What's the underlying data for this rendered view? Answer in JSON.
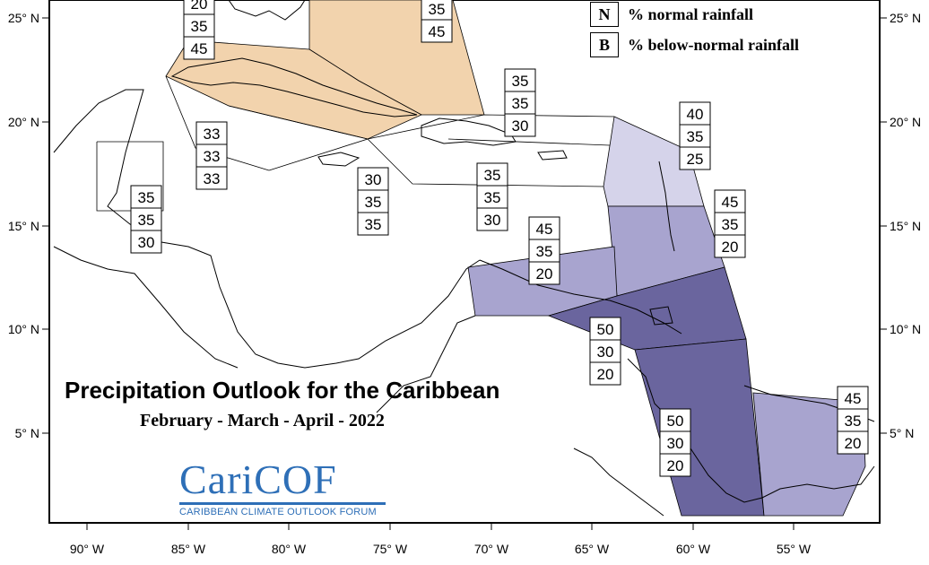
{
  "map": {
    "title": "Precipitation Outlook for the Caribbean",
    "subtitle": "February - March - April - 2022",
    "x_ticks": [
      "90° W",
      "85° W",
      "80° W",
      "75° W",
      "70° W",
      "65° W",
      "60° W",
      "55° W"
    ],
    "y_ticks": [
      "25° N",
      "20° N",
      "15° N",
      "10° N",
      "5° N"
    ],
    "colors": {
      "tan": "#f2d3ad",
      "light_lavender": "#d5d3ea",
      "medium_lavender": "#a8a4cf",
      "dark_purple": "#6a659e",
      "purple": "#7f7ab0",
      "land_line": "#000000"
    },
    "regions": [
      {
        "id": "bahamas",
        "values": [
          "35",
          "45"
        ],
        "color": "tan"
      },
      {
        "id": "cuba",
        "values": [
          "20",
          "35",
          "45"
        ],
        "color": "tan"
      },
      {
        "id": "hispaniola",
        "values": [
          "35",
          "35",
          "30"
        ],
        "color": "white"
      },
      {
        "id": "yucatan-basin",
        "values": [
          "33",
          "33",
          "33"
        ],
        "color": "white"
      },
      {
        "id": "belize",
        "values": [
          "35",
          "35",
          "30"
        ],
        "color": "white"
      },
      {
        "id": "jamaica",
        "values": [
          "30",
          "35",
          "35"
        ],
        "color": "white"
      },
      {
        "id": "central-caribbean",
        "values": [
          "35",
          "35",
          "30"
        ],
        "color": "white"
      },
      {
        "id": "leeward-islands",
        "values": [
          "40",
          "35",
          "25"
        ],
        "color": "light_lavender"
      },
      {
        "id": "windward-islands",
        "values": [
          "45",
          "35",
          "20"
        ],
        "color": "medium_lavender"
      },
      {
        "id": "abc-islands",
        "values": [
          "45",
          "35",
          "20"
        ],
        "color": "medium_lavender"
      },
      {
        "id": "trinidad",
        "values": [
          "50",
          "30",
          "20"
        ],
        "color": "dark_purple"
      },
      {
        "id": "guyana",
        "values": [
          "50",
          "30",
          "20"
        ],
        "color": "dark_purple"
      },
      {
        "id": "suriname-guiana",
        "values": [
          "45",
          "35",
          "20"
        ],
        "color": "medium_lavender"
      }
    ]
  },
  "legend": {
    "n_key": "N",
    "n_label": "% normal rainfall",
    "b_key": "B",
    "b_label": "% below-normal rainfall"
  },
  "logo": {
    "name_part1": "Cari",
    "name_part2": "COF",
    "tagline": "CARIBBEAN CLIMATE OUTLOOK FORUM"
  }
}
